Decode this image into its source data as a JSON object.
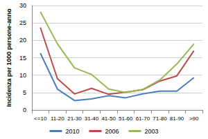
{
  "chart_data": {
    "type": "line",
    "y_label": "Incidenza per 1000 persone-anno",
    "categories": [
      "<=10",
      "11-20",
      "21-30",
      "31-40",
      "41-50",
      "51-60",
      "61-70",
      "71-80",
      "81-90",
      ">90"
    ],
    "series": [
      {
        "name": "2010",
        "color": "#4a7ebb",
        "values": [
          16.3,
          6,
          2.7,
          3.2,
          4.1,
          3.5,
          4.6,
          5.4,
          5.4,
          9.3
        ]
      },
      {
        "name": "2006",
        "color": "#be4b48",
        "values": [
          23.7,
          9,
          4.6,
          6.2,
          4.5,
          5.1,
          5.8,
          8.3,
          9.8,
          17
        ]
      },
      {
        "name": "2003",
        "color": "#98b954",
        "values": [
          28.2,
          19,
          12.1,
          10.2,
          6,
          5,
          5.9,
          8.6,
          13.2,
          19
        ]
      }
    ],
    "ylim": [
      0,
      30
    ],
    "yticks": [
      0,
      5,
      10,
      15,
      20,
      25,
      30
    ],
    "grid": true,
    "legend": "bottom"
  }
}
